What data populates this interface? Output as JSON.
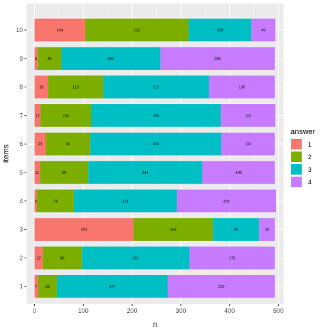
{
  "chart_data": {
    "type": "bar",
    "orientation": "horizontal",
    "stacked": true,
    "title": "",
    "xlabel": "n",
    "ylabel": "items",
    "xlim": [
      0,
      500
    ],
    "x_ticks": [
      0,
      100,
      200,
      300,
      400,
      500
    ],
    "categories": [
      "1",
      "2",
      "3",
      "4",
      "5",
      "6",
      "7",
      "8",
      "9",
      "10"
    ],
    "legend": {
      "title": "answer",
      "position": "right",
      "entries": [
        "1",
        "2",
        "3",
        "4"
      ]
    },
    "series": [
      {
        "name": "1",
        "color": "#F8766D",
        "values": [
          7,
          17,
          203,
          5,
          11,
          23,
          12,
          28,
          6,
          104
        ]
      },
      {
        "name": "2",
        "color": "#7CAE00",
        "values": [
          39,
          80,
          163,
          76,
          99,
          91,
          104,
          113,
          49,
          212
        ]
      },
      {
        "name": "3",
        "color": "#00BFC4",
        "values": [
          227,
          221,
          95,
          211,
          234,
          269,
          266,
          217,
          203,
          129
        ]
      },
      {
        "name": "4",
        "color": "#C77CFF",
        "values": [
          220,
          175,
          32,
          203,
          149,
          110,
          112,
          135,
          235,
          49
        ]
      }
    ],
    "grid": true,
    "panel_background": "#EBEBEB"
  }
}
